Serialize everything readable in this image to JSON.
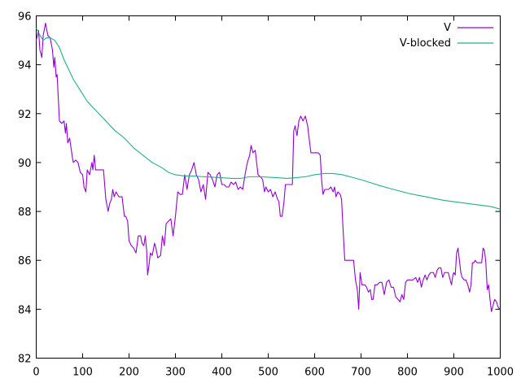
{
  "chart_data": {
    "type": "line",
    "title": "",
    "xlabel": "",
    "ylabel": "",
    "xlim": [
      0,
      1000
    ],
    "ylim": [
      82,
      96
    ],
    "xticks": [
      0,
      100,
      200,
      300,
      400,
      500,
      600,
      700,
      800,
      900,
      1000
    ],
    "yticks": [
      82,
      84,
      86,
      88,
      90,
      92,
      94,
      96
    ],
    "grid": false,
    "legend_position": "top-right",
    "series": [
      {
        "name": "V",
        "color": "#9400d3",
        "points": [
          [
            0,
            95.0
          ],
          [
            5,
            95.4
          ],
          [
            8,
            94.6
          ],
          [
            12,
            94.3
          ],
          [
            15,
            95.2
          ],
          [
            20,
            95.7
          ],
          [
            25,
            95.2
          ],
          [
            30,
            95.1
          ],
          [
            35,
            94.6
          ],
          [
            38,
            93.9
          ],
          [
            40,
            94.3
          ],
          [
            43,
            93.5
          ],
          [
            45,
            93.6
          ],
          [
            50,
            91.7
          ],
          [
            55,
            91.6
          ],
          [
            60,
            91.7
          ],
          [
            63,
            91.2
          ],
          [
            65,
            91.6
          ],
          [
            68,
            90.8
          ],
          [
            72,
            91.0
          ],
          [
            75,
            90.6
          ],
          [
            78,
            90.2
          ],
          [
            80,
            90.0
          ],
          [
            85,
            90.1
          ],
          [
            90,
            90.0
          ],
          [
            95,
            89.6
          ],
          [
            100,
            89.5
          ],
          [
            103,
            89.0
          ],
          [
            107,
            88.8
          ],
          [
            110,
            89.7
          ],
          [
            115,
            89.5
          ],
          [
            120,
            90.0
          ],
          [
            122,
            89.7
          ],
          [
            125,
            90.3
          ],
          [
            128,
            89.7
          ],
          [
            135,
            89.7
          ],
          [
            140,
            89.7
          ],
          [
            145,
            89.7
          ],
          [
            150,
            88.5
          ],
          [
            155,
            88.0
          ],
          [
            158,
            88.3
          ],
          [
            162,
            88.5
          ],
          [
            165,
            88.9
          ],
          [
            168,
            88.6
          ],
          [
            172,
            88.8
          ],
          [
            178,
            88.6
          ],
          [
            185,
            88.6
          ],
          [
            190,
            87.8
          ],
          [
            193,
            87.8
          ],
          [
            197,
            87.6
          ],
          [
            200,
            86.8
          ],
          [
            205,
            86.6
          ],
          [
            210,
            86.5
          ],
          [
            215,
            86.3
          ],
          [
            220,
            87.0
          ],
          [
            225,
            87.0
          ],
          [
            228,
            86.7
          ],
          [
            232,
            86.6
          ],
          [
            235,
            87.0
          ],
          [
            238,
            86.4
          ],
          [
            240,
            85.4
          ],
          [
            243,
            85.8
          ],
          [
            246,
            86.3
          ],
          [
            250,
            86.2
          ],
          [
            255,
            86.7
          ],
          [
            258,
            86.5
          ],
          [
            262,
            86.1
          ],
          [
            268,
            86.2
          ],
          [
            272,
            87.0
          ],
          [
            276,
            86.6
          ],
          [
            280,
            87.5
          ],
          [
            285,
            87.6
          ],
          [
            290,
            87.7
          ],
          [
            295,
            87.0
          ],
          [
            300,
            87.8
          ],
          [
            305,
            88.8
          ],
          [
            310,
            88.7
          ],
          [
            315,
            88.7
          ],
          [
            320,
            89.5
          ],
          [
            325,
            88.9
          ],
          [
            330,
            89.5
          ],
          [
            335,
            89.7
          ],
          [
            340,
            90.0
          ],
          [
            345,
            89.5
          ],
          [
            350,
            89.3
          ],
          [
            355,
            88.8
          ],
          [
            360,
            89.1
          ],
          [
            365,
            88.5
          ],
          [
            370,
            89.6
          ],
          [
            375,
            89.5
          ],
          [
            380,
            89.3
          ],
          [
            385,
            89.0
          ],
          [
            390,
            89.5
          ],
          [
            395,
            89.6
          ],
          [
            400,
            89.1
          ],
          [
            405,
            89.1
          ],
          [
            410,
            89.0
          ],
          [
            415,
            89.0
          ],
          [
            420,
            89.2
          ],
          [
            425,
            89.1
          ],
          [
            430,
            89.2
          ],
          [
            435,
            88.9
          ],
          [
            440,
            89.0
          ],
          [
            445,
            88.9
          ],
          [
            450,
            89.5
          ],
          [
            455,
            90.0
          ],
          [
            460,
            90.3
          ],
          [
            463,
            90.7
          ],
          [
            467,
            90.4
          ],
          [
            472,
            90.5
          ],
          [
            478,
            89.5
          ],
          [
            484,
            89.4
          ],
          [
            488,
            89.3
          ],
          [
            492,
            88.8
          ],
          [
            495,
            89.0
          ],
          [
            500,
            88.8
          ],
          [
            505,
            88.9
          ],
          [
            510,
            88.6
          ],
          [
            515,
            88.8
          ],
          [
            520,
            88.5
          ],
          [
            523,
            88.4
          ],
          [
            526,
            87.8
          ],
          [
            530,
            87.8
          ],
          [
            534,
            88.4
          ],
          [
            537,
            89.1
          ],
          [
            542,
            89.1
          ],
          [
            548,
            89.1
          ],
          [
            552,
            89.1
          ],
          [
            555,
            91.3
          ],
          [
            558,
            91.5
          ],
          [
            562,
            91.1
          ],
          [
            566,
            91.7
          ],
          [
            570,
            91.9
          ],
          [
            575,
            91.7
          ],
          [
            580,
            91.9
          ],
          [
            585,
            91.5
          ],
          [
            588,
            91.0
          ],
          [
            592,
            90.4
          ],
          [
            600,
            90.4
          ],
          [
            608,
            90.4
          ],
          [
            612,
            90.3
          ],
          [
            615,
            89.3
          ],
          [
            618,
            88.7
          ],
          [
            622,
            88.9
          ],
          [
            626,
            88.9
          ],
          [
            630,
            88.9
          ],
          [
            635,
            89.0
          ],
          [
            640,
            88.8
          ],
          [
            643,
            89.0
          ],
          [
            646,
            88.6
          ],
          [
            650,
            88.8
          ],
          [
            655,
            88.7
          ],
          [
            658,
            88.5
          ],
          [
            662,
            87.0
          ],
          [
            665,
            86.0
          ],
          [
            670,
            86.0
          ],
          [
            678,
            86.0
          ],
          [
            684,
            86.0
          ],
          [
            688,
            85.2
          ],
          [
            692,
            84.8
          ],
          [
            695,
            84.0
          ],
          [
            698,
            85.5
          ],
          [
            702,
            85.0
          ],
          [
            708,
            85.0
          ],
          [
            712,
            84.9
          ],
          [
            716,
            84.7
          ],
          [
            720,
            84.8
          ],
          [
            723,
            84.4
          ],
          [
            726,
            84.4
          ],
          [
            730,
            85.0
          ],
          [
            735,
            85.0
          ],
          [
            740,
            85.1
          ],
          [
            745,
            85.1
          ],
          [
            750,
            84.6
          ],
          [
            755,
            85.1
          ],
          [
            760,
            85.2
          ],
          [
            765,
            84.9
          ],
          [
            770,
            84.9
          ],
          [
            775,
            84.5
          ],
          [
            780,
            84.4
          ],
          [
            784,
            84.3
          ],
          [
            788,
            84.6
          ],
          [
            792,
            84.4
          ],
          [
            796,
            85.1
          ],
          [
            800,
            85.2
          ],
          [
            806,
            85.2
          ],
          [
            812,
            85.2
          ],
          [
            818,
            85.3
          ],
          [
            822,
            85.1
          ],
          [
            826,
            85.3
          ],
          [
            830,
            84.9
          ],
          [
            834,
            85.2
          ],
          [
            838,
            85.4
          ],
          [
            842,
            85.2
          ],
          [
            846,
            85.4
          ],
          [
            850,
            85.5
          ],
          [
            856,
            85.5
          ],
          [
            860,
            85.3
          ],
          [
            864,
            85.6
          ],
          [
            868,
            85.7
          ],
          [
            872,
            85.7
          ],
          [
            876,
            85.3
          ],
          [
            880,
            85.5
          ],
          [
            884,
            85.5
          ],
          [
            888,
            85.5
          ],
          [
            892,
            85.2
          ],
          [
            895,
            85.0
          ],
          [
            898,
            85.4
          ],
          [
            900,
            85.5
          ],
          [
            903,
            85.4
          ],
          [
            906,
            86.3
          ],
          [
            909,
            86.5
          ],
          [
            912,
            86.0
          ],
          [
            915,
            85.5
          ],
          [
            918,
            85.3
          ],
          [
            922,
            85.2
          ],
          [
            926,
            85.2
          ],
          [
            930,
            85.0
          ],
          [
            934,
            84.7
          ],
          [
            937,
            85.0
          ],
          [
            940,
            85.9
          ],
          [
            943,
            85.9
          ],
          [
            946,
            86.0
          ],
          [
            950,
            85.9
          ],
          [
            953,
            85.9
          ],
          [
            956,
            85.9
          ],
          [
            960,
            85.9
          ],
          [
            963,
            86.5
          ],
          [
            966,
            86.4
          ],
          [
            969,
            85.9
          ],
          [
            972,
            84.8
          ],
          [
            975,
            85.0
          ],
          [
            978,
            84.4
          ],
          [
            981,
            83.9
          ],
          [
            985,
            84.2
          ],
          [
            988,
            84.4
          ],
          [
            992,
            84.3
          ],
          [
            995,
            84.1
          ],
          [
            999,
            84.0
          ]
        ]
      },
      {
        "name": "V-blocked",
        "color": "#20b282",
        "points": [
          [
            0,
            95.5
          ],
          [
            8,
            95.2
          ],
          [
            15,
            95.0
          ],
          [
            22,
            95.1
          ],
          [
            30,
            95.1
          ],
          [
            40,
            95.0
          ],
          [
            50,
            94.7
          ],
          [
            60,
            94.2
          ],
          [
            70,
            93.8
          ],
          [
            80,
            93.4
          ],
          [
            90,
            93.1
          ],
          [
            100,
            92.8
          ],
          [
            110,
            92.5
          ],
          [
            120,
            92.3
          ],
          [
            135,
            92.0
          ],
          [
            150,
            91.7
          ],
          [
            170,
            91.3
          ],
          [
            190,
            91.0
          ],
          [
            210,
            90.6
          ],
          [
            230,
            90.3
          ],
          [
            250,
            90.0
          ],
          [
            270,
            89.8
          ],
          [
            285,
            89.6
          ],
          [
            300,
            89.5
          ],
          [
            320,
            89.45
          ],
          [
            340,
            89.45
          ],
          [
            360,
            89.42
          ],
          [
            380,
            89.4
          ],
          [
            400,
            89.38
          ],
          [
            420,
            89.35
          ],
          [
            440,
            89.35
          ],
          [
            460,
            89.42
          ],
          [
            480,
            89.42
          ],
          [
            500,
            89.4
          ],
          [
            520,
            89.38
          ],
          [
            540,
            89.35
          ],
          [
            560,
            89.38
          ],
          [
            580,
            89.42
          ],
          [
            600,
            89.5
          ],
          [
            620,
            89.55
          ],
          [
            640,
            89.55
          ],
          [
            660,
            89.5
          ],
          [
            680,
            89.4
          ],
          [
            700,
            89.3
          ],
          [
            720,
            89.18
          ],
          [
            740,
            89.06
          ],
          [
            760,
            88.95
          ],
          [
            780,
            88.85
          ],
          [
            800,
            88.75
          ],
          [
            820,
            88.67
          ],
          [
            840,
            88.6
          ],
          [
            860,
            88.52
          ],
          [
            880,
            88.45
          ],
          [
            900,
            88.4
          ],
          [
            920,
            88.35
          ],
          [
            940,
            88.3
          ],
          [
            960,
            88.25
          ],
          [
            980,
            88.2
          ],
          [
            999,
            88.1
          ]
        ]
      }
    ]
  }
}
